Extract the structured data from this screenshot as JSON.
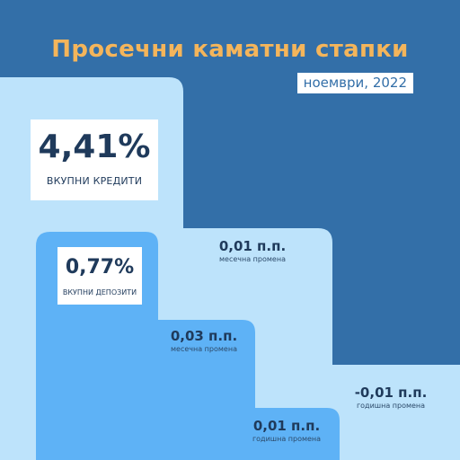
{
  "title": "Просечни каматни стапки",
  "period": "ноември, 2022",
  "loans": {
    "value": "4,41%",
    "label": "ВКУПНИ КРЕДИТИ",
    "monthly_change": "0,01 п.п.",
    "monthly_label": "месечна промена",
    "yearly_change": "-0,01 п.п.",
    "yearly_label": "годишна промена"
  },
  "deposits": {
    "value": "0,77%",
    "label": "ВКУПНИ ДЕПОЗИТИ",
    "monthly_change": "0,03 п.п.",
    "monthly_label": "месечна промена",
    "yearly_change": "0,01 п.п.",
    "yearly_label": "годишна промена"
  },
  "colors": {
    "background": "#336fa8",
    "light_step": "#bde3fb",
    "mid_step": "#5eb2f6",
    "title": "#f4b55b",
    "text": "#1f3a5b"
  }
}
